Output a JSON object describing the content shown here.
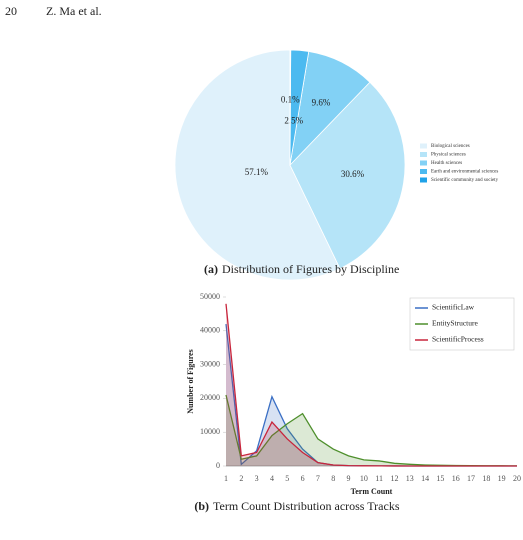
{
  "header": {
    "page": "20",
    "authors": "Z. Ma et al."
  },
  "chart_data": [
    {
      "type": "pie",
      "caption_tag": "(a)",
      "caption": "Distribution of Figures by Discipline",
      "categories": [
        "Biological sciences",
        "Physical sciences",
        "Health sciences",
        "Earth and environmental sciences",
        "Scientific community and society"
      ],
      "values": [
        57.1,
        30.6,
        9.6,
        2.5,
        0.1
      ],
      "value_labels": [
        "57.1%",
        "30.6%",
        "9.6%",
        "2.5%",
        "0.1%"
      ],
      "colors": [
        "#dff1fb",
        "#b5e4f8",
        "#82d1f5",
        "#4cbaf0",
        "#1fa2e8"
      ],
      "legend": "right"
    },
    {
      "type": "area",
      "caption_tag": "(b)",
      "caption": "Term Count Distribution across Tracks",
      "x_label": "Term Count",
      "y_label": "Number of Figures",
      "x": [
        1,
        2,
        3,
        4,
        5,
        6,
        7,
        8,
        9,
        10,
        11,
        12,
        13,
        14,
        15,
        16,
        17,
        18,
        19,
        20
      ],
      "xlim": [
        1,
        20
      ],
      "ylim": [
        0,
        50000
      ],
      "yticks": [
        0,
        10000,
        20000,
        30000,
        40000,
        50000
      ],
      "legend": "upper right",
      "series": [
        {
          "name": "ScientificLaw",
          "color": "#3a6fc4",
          "values": [
            42000,
            500,
            4500,
            20500,
            11000,
            5000,
            1000,
            300,
            100,
            50,
            30,
            20,
            10,
            10,
            0,
            0,
            0,
            0,
            0,
            0
          ]
        },
        {
          "name": "EntityStructure",
          "color": "#4e8f2c",
          "values": [
            21000,
            2000,
            3000,
            9000,
            12500,
            15500,
            8000,
            5000,
            3000,
            1800,
            1500,
            800,
            500,
            300,
            200,
            150,
            100,
            80,
            50,
            30
          ]
        },
        {
          "name": "ScientificProcess",
          "color": "#c8253c",
          "values": [
            48000,
            3000,
            4000,
            13000,
            8000,
            4000,
            1000,
            300,
            100,
            50,
            30,
            20,
            10,
            0,
            0,
            0,
            0,
            0,
            0,
            0
          ]
        }
      ]
    }
  ]
}
